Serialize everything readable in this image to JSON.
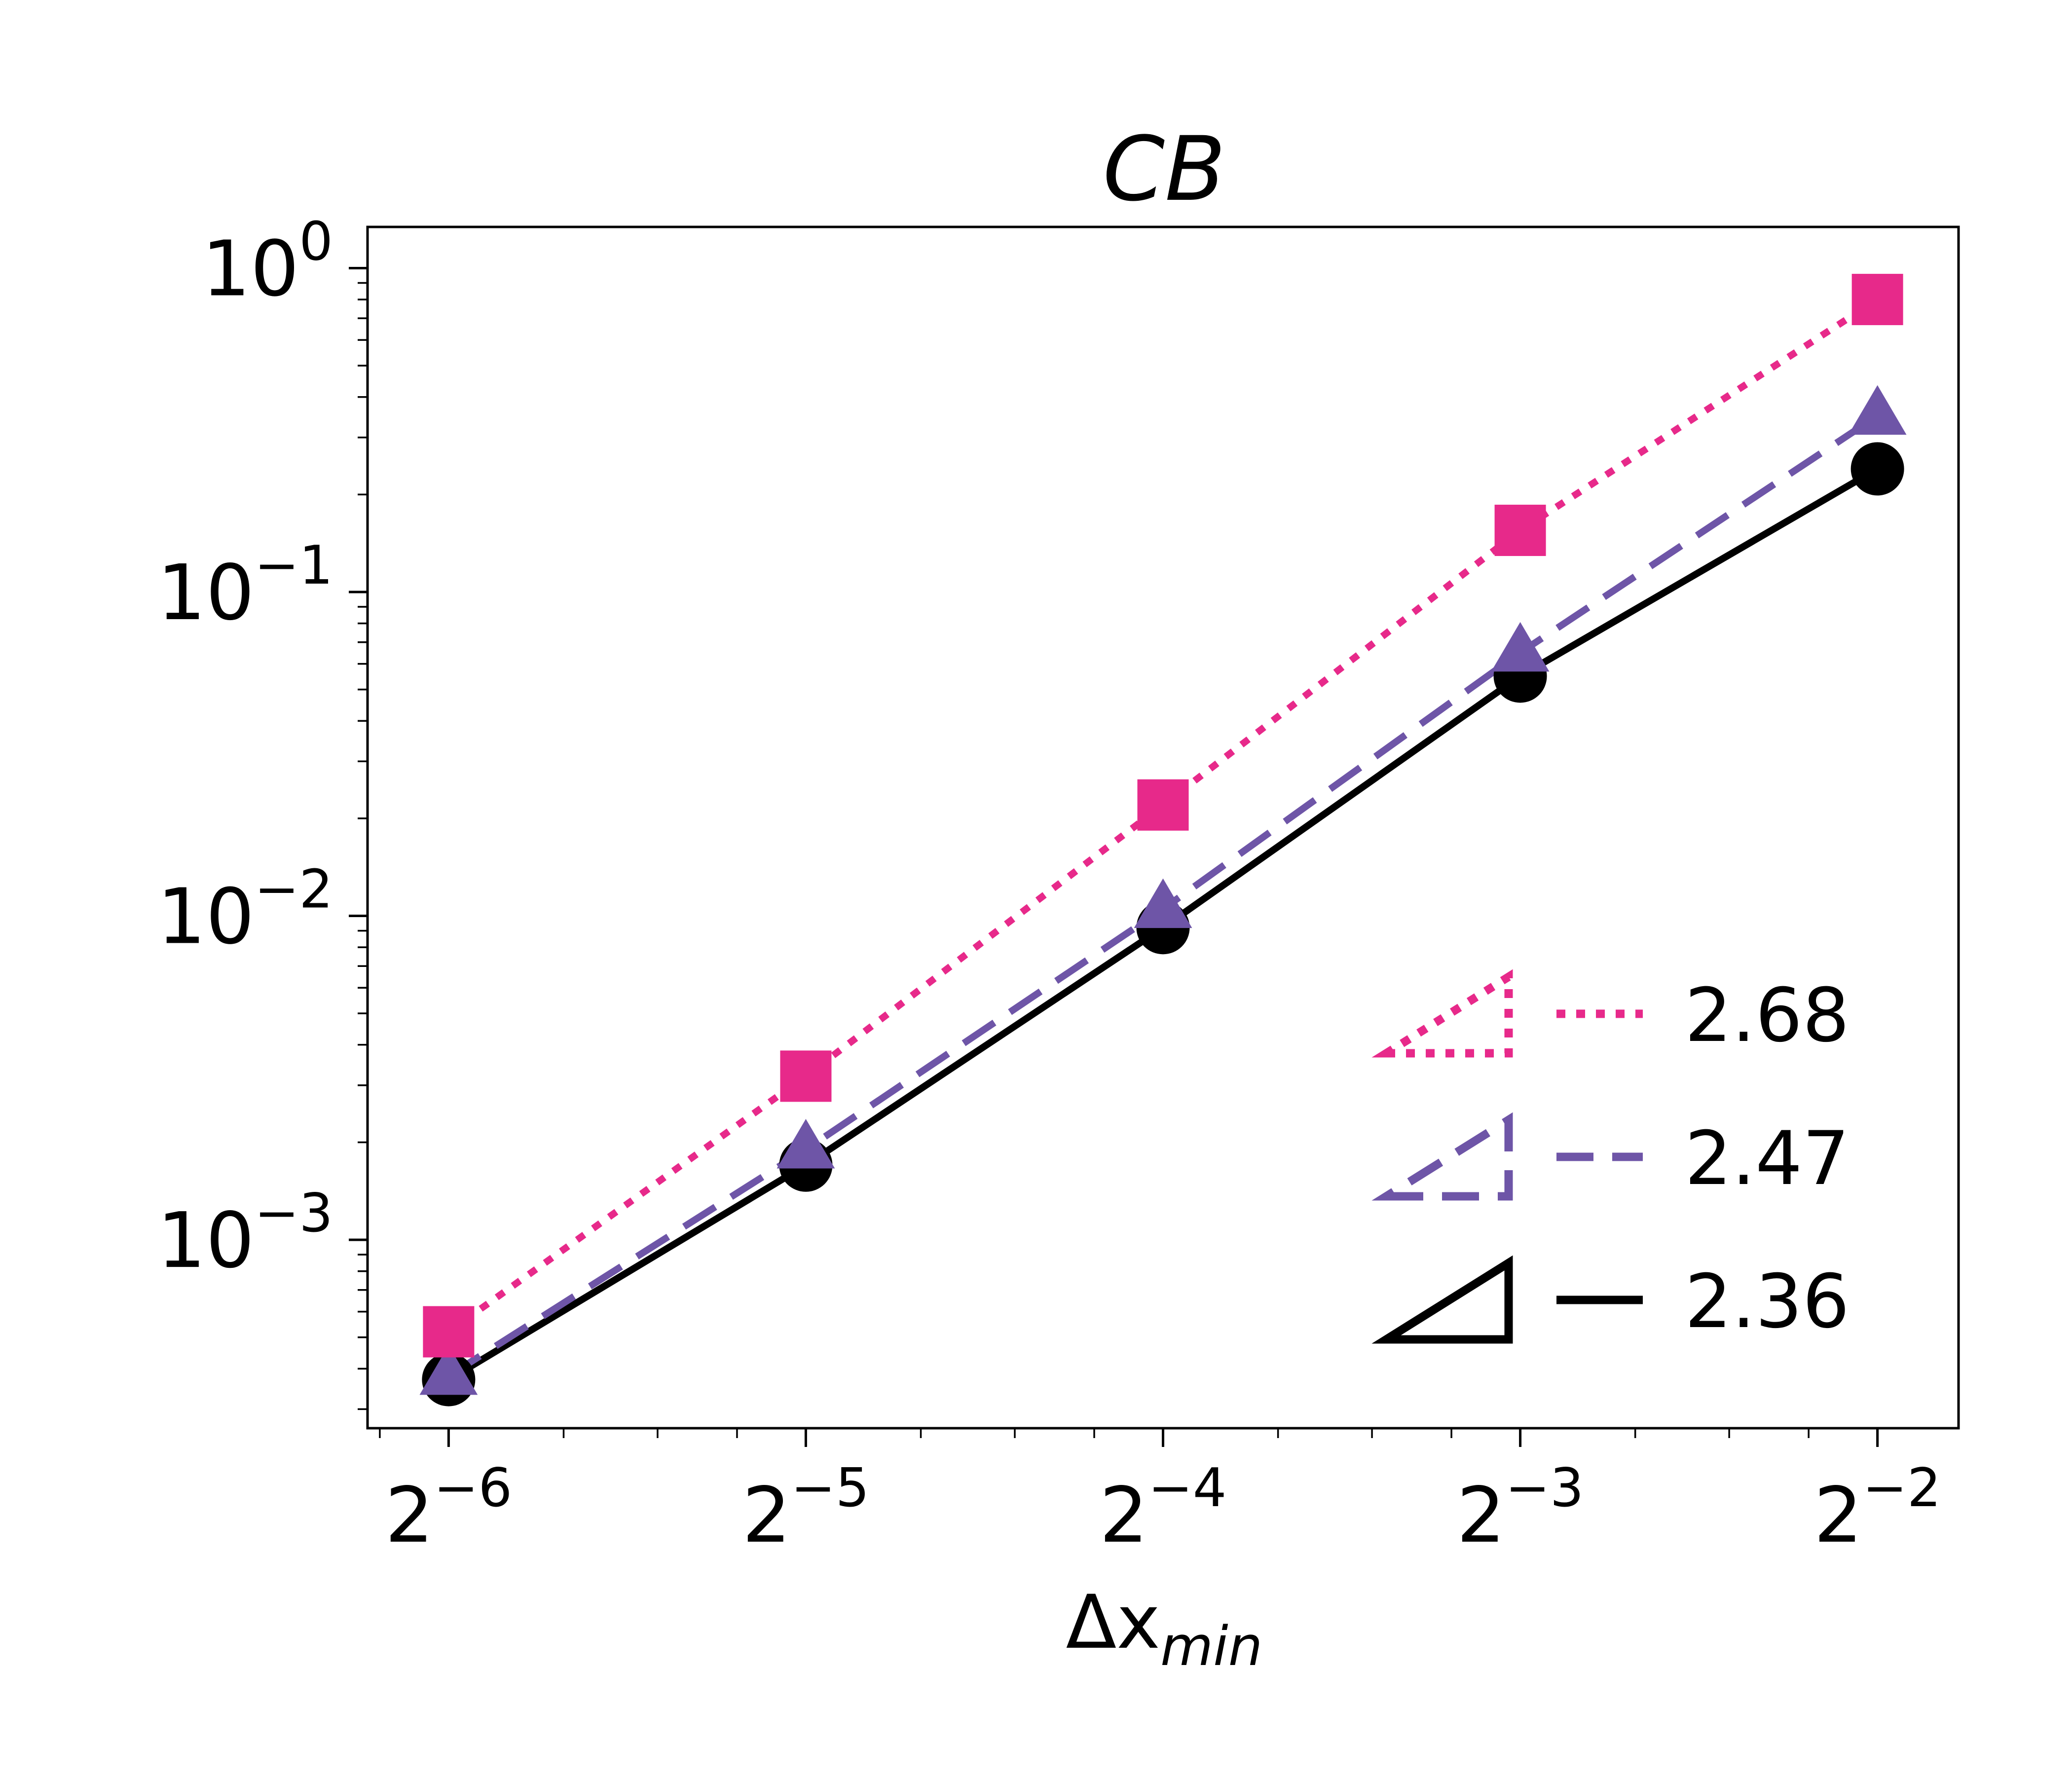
{
  "chart_data": {
    "type": "line",
    "title": "CB",
    "xlabel": "Δx",
    "xlabel_subscript": "min",
    "ylabel": "",
    "x_scale": "log2",
    "y_scale": "log10",
    "x": [
      0.015625,
      0.03125,
      0.0625,
      0.125,
      0.25
    ],
    "xlim": [
      0.01335,
      0.2926
    ],
    "ylim": [
      0.000262,
      1.34
    ],
    "x_ticks": [
      {
        "value": 0.015625,
        "base": "2",
        "exp": "−6"
      },
      {
        "value": 0.03125,
        "base": "2",
        "exp": "−5"
      },
      {
        "value": 0.0625,
        "base": "2",
        "exp": "−4"
      },
      {
        "value": 0.125,
        "base": "2",
        "exp": "−3"
      },
      {
        "value": 0.25,
        "base": "2",
        "exp": "−2"
      }
    ],
    "y_ticks": [
      {
        "value": 1,
        "base": "10",
        "exp": "0"
      },
      {
        "value": 0.1,
        "base": "10",
        "exp": "−1"
      },
      {
        "value": 0.01,
        "base": "10",
        "exp": "−2"
      },
      {
        "value": 0.001,
        "base": "10",
        "exp": "−3"
      }
    ],
    "grid": false,
    "legend_position": "lower-right",
    "series": [
      {
        "name": "2.68",
        "color": "#e7298a",
        "linestyle": "dotted",
        "marker": "square",
        "values": [
          0.00052,
          0.0032,
          0.022,
          0.155,
          0.8
        ]
      },
      {
        "name": "2.47",
        "color": "#6e55a7",
        "linestyle": "dashed",
        "marker": "triangle",
        "values": [
          0.00038,
          0.0019,
          0.0105,
          0.065,
          0.35
        ]
      },
      {
        "name": "2.36",
        "color": "#000000",
        "linestyle": "solid",
        "marker": "circle",
        "values": [
          0.00037,
          0.0017,
          0.0092,
          0.055,
          0.24
        ]
      }
    ]
  }
}
